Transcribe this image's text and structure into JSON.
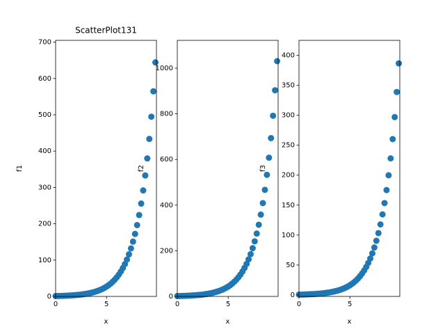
{
  "chart_data": [
    {
      "type": "scatter",
      "title": "ScatterPlot131",
      "x_label": "x",
      "y_label": "f1",
      "color": "#1f77b4",
      "x": [
        0,
        0.2,
        0.4,
        0.6,
        0.8,
        1,
        1.2,
        1.4,
        1.6,
        1.8,
        2,
        2.2,
        2.4,
        2.6,
        2.8,
        3,
        3.2,
        3.4,
        3.6,
        3.8,
        4,
        4.2,
        4.4,
        4.6,
        4.8,
        5,
        5.2,
        5.4,
        5.6,
        5.8,
        6,
        6.2,
        6.4,
        6.6,
        6.8,
        7,
        7.2,
        7.4,
        7.6,
        7.8,
        8,
        8.2,
        8.4,
        8.6,
        8.8,
        9,
        9.2,
        9.4,
        9.6,
        9.8
      ],
      "values": [
        1.0,
        1.141,
        1.302,
        1.486,
        1.696,
        1.935,
        2.208,
        2.52,
        2.876,
        3.281,
        3.743,
        4.272,
        4.875,
        5.563,
        6.348,
        7.243,
        8.266,
        9.432,
        10.76,
        12.28,
        14.01,
        15.99,
        18.25,
        20.82,
        23.76,
        27.11,
        30.94,
        35.3,
        40.28,
        45.97,
        52.46,
        59.86,
        68.31,
        77.95,
        88.95,
        101.5,
        115.8,
        132.2,
        150.8,
        172.1,
        196.4,
        224.1,
        255.7,
        291.8,
        333.0,
        380.0,
        433.6,
        494.8,
        564.6,
        644.3
      ],
      "xlim": [
        0,
        9.9
      ],
      "ylim": [
        0,
        705
      ],
      "xticks": [
        0,
        5
      ],
      "yticks": [
        0,
        100,
        200,
        300,
        400,
        500,
        600,
        700
      ]
    },
    {
      "type": "scatter",
      "x_label": "x",
      "y_label": "f2",
      "color": "#1f77b4",
      "x": [
        0,
        0.2,
        0.4,
        0.6,
        0.8,
        1,
        1.2,
        1.4,
        1.6,
        1.8,
        2,
        2.2,
        2.4,
        2.6,
        2.8,
        3,
        3.2,
        3.4,
        3.6,
        3.8,
        4,
        4.2,
        4.4,
        4.6,
        4.8,
        5,
        5.2,
        5.4,
        5.6,
        5.8,
        6,
        6.2,
        6.4,
        6.6,
        6.8,
        7,
        7.2,
        7.4,
        7.6,
        7.8,
        8,
        8.2,
        8.4,
        8.6,
        8.8,
        9,
        9.2,
        9.4,
        9.6,
        9.8
      ],
      "values": [
        1.6,
        1.83,
        2.08,
        2.38,
        2.71,
        3.1,
        3.53,
        4.03,
        4.6,
        5.25,
        5.99,
        6.84,
        7.8,
        8.9,
        10.16,
        11.59,
        13.23,
        15.09,
        17.22,
        19.65,
        22.42,
        25.58,
        29.2,
        33.31,
        38.02,
        43.38,
        49.5,
        56.48,
        64.45,
        73.55,
        83.94,
        95.78,
        109.3,
        124.7,
        142.3,
        162.4,
        185.3,
        211.5,
        241.3,
        275.4,
        314.2,
        358.6,
        409.1,
        466.9,
        532.8,
        608,
        693.8,
        791.7,
        903.4,
        1030.9
      ],
      "xlim": [
        0,
        9.9
      ],
      "ylim": [
        0,
        1122
      ],
      "xticks": [
        0,
        5
      ],
      "yticks": [
        0,
        200,
        400,
        600,
        800,
        1000
      ]
    },
    {
      "type": "scatter",
      "x_label": "x",
      "y_label": "f3",
      "color": "#1f77b4",
      "x": [
        0,
        0.2,
        0.4,
        0.6,
        0.8,
        1,
        1.2,
        1.4,
        1.6,
        1.8,
        2,
        2.2,
        2.4,
        2.6,
        2.8,
        3,
        3.2,
        3.4,
        3.6,
        3.8,
        4,
        4.2,
        4.4,
        4.6,
        4.8,
        5,
        5.2,
        5.4,
        5.6,
        5.8,
        6,
        6.2,
        6.4,
        6.6,
        6.8,
        7,
        7.2,
        7.4,
        7.6,
        7.8,
        8,
        8.2,
        8.4,
        8.6,
        8.8,
        9,
        9.2,
        9.4,
        9.6,
        9.8
      ],
      "values": [
        0.6,
        0.68,
        0.78,
        0.89,
        1.02,
        1.16,
        1.32,
        1.51,
        1.73,
        1.97,
        2.25,
        2.56,
        2.93,
        3.34,
        3.81,
        4.35,
        4.96,
        5.66,
        6.46,
        7.37,
        8.41,
        9.59,
        10.95,
        12.49,
        14.26,
        16.27,
        18.56,
        21.18,
        24.17,
        27.58,
        31.48,
        35.92,
        40.99,
        46.77,
        53.37,
        60.9,
        69.48,
        79.32,
        90.48,
        103.3,
        117.8,
        134.5,
        153.4,
        175.1,
        199.8,
        228,
        260.2,
        296.9,
        338.8,
        386.6
      ],
      "xlim": [
        0,
        9.9
      ],
      "ylim": [
        -2.4,
        425
      ],
      "xticks": [
        0,
        5
      ],
      "yticks": [
        0,
        50,
        100,
        150,
        200,
        250,
        300,
        350,
        400
      ]
    }
  ]
}
